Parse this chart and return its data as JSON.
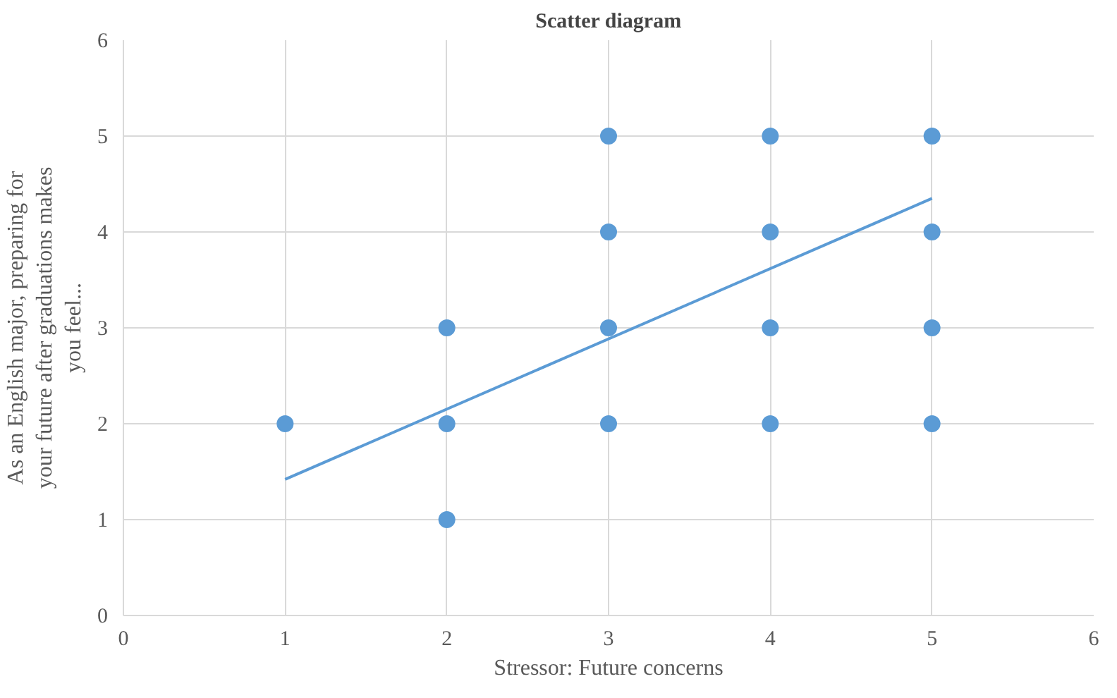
{
  "chart_data": {
    "type": "scatter",
    "title": "Scatter diagram",
    "xlabel": "Stressor: Future concerns",
    "ylabel": "As an English major, preparing for\nyour future after graduations makes\nyou feel...",
    "series": [
      {
        "color": "#5b9bd5",
        "marker": "circle",
        "x": [
          1,
          2,
          2,
          2,
          3,
          3,
          3,
          3,
          4,
          4,
          4,
          4,
          5,
          5,
          5,
          5
        ],
        "values": [
          2,
          1,
          2,
          3,
          2,
          3,
          4,
          5,
          2,
          3,
          4,
          5,
          2,
          3,
          4,
          5
        ]
      },
      {
        "type": "line",
        "color": "#5b9bd5",
        "x": [
          1,
          5
        ],
        "values": [
          1.42,
          4.35
        ]
      }
    ],
    "xlim": [
      0,
      6
    ],
    "ylim": [
      0,
      6
    ],
    "xticks": [
      0,
      1,
      2,
      3,
      4,
      5,
      6
    ],
    "yticks": [
      0,
      1,
      2,
      3,
      4,
      5,
      6
    ],
    "grid": true
  }
}
